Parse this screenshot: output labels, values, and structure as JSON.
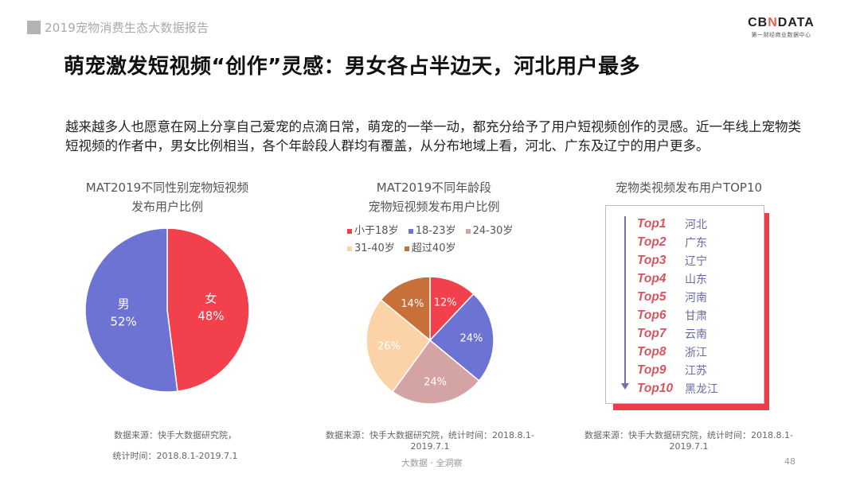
{
  "header": {
    "report_title": "2019宠物消费生态大数据报告",
    "logo": {
      "brand_left": "CB",
      "brand_x": "N",
      "brand_right": "DATA",
      "subtitle": "第一财经商业数据中心"
    }
  },
  "page_title": "萌宠激发短视频“创作”灵感：男女各占半边天，河北用户最多",
  "description": "越来越多人也愿意在网上分享自己爱宠的点滴日常，萌宠的一举一动，都充分给予了用户短视频创作的灵感。近一年线上宠物类短视频的作者中，男女比例相当，各个年龄段人群均有覆盖，从分布地域上看，河北、广东及辽宁的用户更多。",
  "charts": {
    "gender": {
      "title_line1": "MAT2019不同性别宠物短视频",
      "title_line2": "发布用户比例",
      "slices": [
        {
          "label": "女",
          "value_label": "48%",
          "value": 48,
          "color": "#f2404c"
        },
        {
          "label": "男",
          "value_label": "52%",
          "value": 52,
          "color": "#6d73d2"
        }
      ],
      "source_line1": "数据来源：快手大数据研究院，",
      "source_line2": "统计时间：2018.8.1-2019.7.1"
    },
    "age": {
      "title_line1": "MAT2019不同年龄段",
      "title_line2": "宠物短视频发布用户比例",
      "legend": [
        {
          "label": "小于18岁",
          "color": "#f2404c"
        },
        {
          "label": "18-23岁",
          "color": "#6d73d2"
        },
        {
          "label": "24-30岁",
          "color": "#d4a4a4"
        },
        {
          "label": "31-40岁",
          "color": "#fcd3a8"
        },
        {
          "label": "超过40岁",
          "color": "#c8703a"
        }
      ],
      "slices": [
        {
          "label": "小于18岁",
          "value_label": "12%",
          "value": 12,
          "color": "#f2404c"
        },
        {
          "label": "18-23岁",
          "value_label": "24%",
          "value": 24,
          "color": "#6d73d2"
        },
        {
          "label": "24-30岁",
          "value_label": "24%",
          "value": 24,
          "color": "#d4a4a4"
        },
        {
          "label": "31-40岁",
          "value_label": "26%",
          "value": 26,
          "color": "#fcd3a8"
        },
        {
          "label": "超过40岁",
          "value_label": "14%",
          "value": 14,
          "color": "#c8703a"
        }
      ],
      "source_line1": "数据来源：快手大数据研究院，统计时间：2018.8.1-",
      "source_line2": "2019.7.1"
    },
    "top10": {
      "title": "宠物类视频发布用户TOP10",
      "rows": [
        {
          "rank": "Top1",
          "province": "河北"
        },
        {
          "rank": "Top2",
          "province": "广东"
        },
        {
          "rank": "Top3",
          "province": "辽宁"
        },
        {
          "rank": "Top4",
          "province": "山东"
        },
        {
          "rank": "Top5",
          "province": "河南"
        },
        {
          "rank": "Top6",
          "province": "甘肃"
        },
        {
          "rank": "Top7",
          "province": "云南"
        },
        {
          "rank": "Top8",
          "province": "浙江"
        },
        {
          "rank": "Top9",
          "province": "江苏"
        },
        {
          "rank": "Top10",
          "province": "黑龙江"
        }
      ],
      "source_line1": "数据来源：快手大数据研究院，统计时间：2018.8.1-",
      "source_line2": "2019.7.1"
    }
  },
  "footer": {
    "center_text": "大数据 · 全洞察",
    "page_number": "48"
  },
  "chart_data": [
    {
      "type": "pie",
      "title": "MAT2019不同性别宠物短视频发布用户比例",
      "categories": [
        "女",
        "男"
      ],
      "values": [
        48,
        52
      ],
      "colors": [
        "#f2404c",
        "#6d73d2"
      ],
      "unit": "%"
    },
    {
      "type": "pie",
      "title": "MAT2019不同年龄段宠物短视频发布用户比例",
      "categories": [
        "小于18岁",
        "18-23岁",
        "24-30岁",
        "31-40岁",
        "超过40岁"
      ],
      "values": [
        12,
        24,
        24,
        26,
        14
      ],
      "colors": [
        "#f2404c",
        "#6d73d2",
        "#d4a4a4",
        "#fcd3a8",
        "#c8703a"
      ],
      "legend_position": "top",
      "unit": "%"
    },
    {
      "type": "table",
      "title": "宠物类视频发布用户TOP10",
      "columns": [
        "rank",
        "province"
      ],
      "rows": [
        [
          "Top1",
          "河北"
        ],
        [
          "Top2",
          "广东"
        ],
        [
          "Top3",
          "辽宁"
        ],
        [
          "Top4",
          "山东"
        ],
        [
          "Top5",
          "河南"
        ],
        [
          "Top6",
          "甘肃"
        ],
        [
          "Top7",
          "云南"
        ],
        [
          "Top8",
          "浙江"
        ],
        [
          "Top9",
          "江苏"
        ],
        [
          "Top10",
          "黑龙江"
        ]
      ]
    }
  ]
}
